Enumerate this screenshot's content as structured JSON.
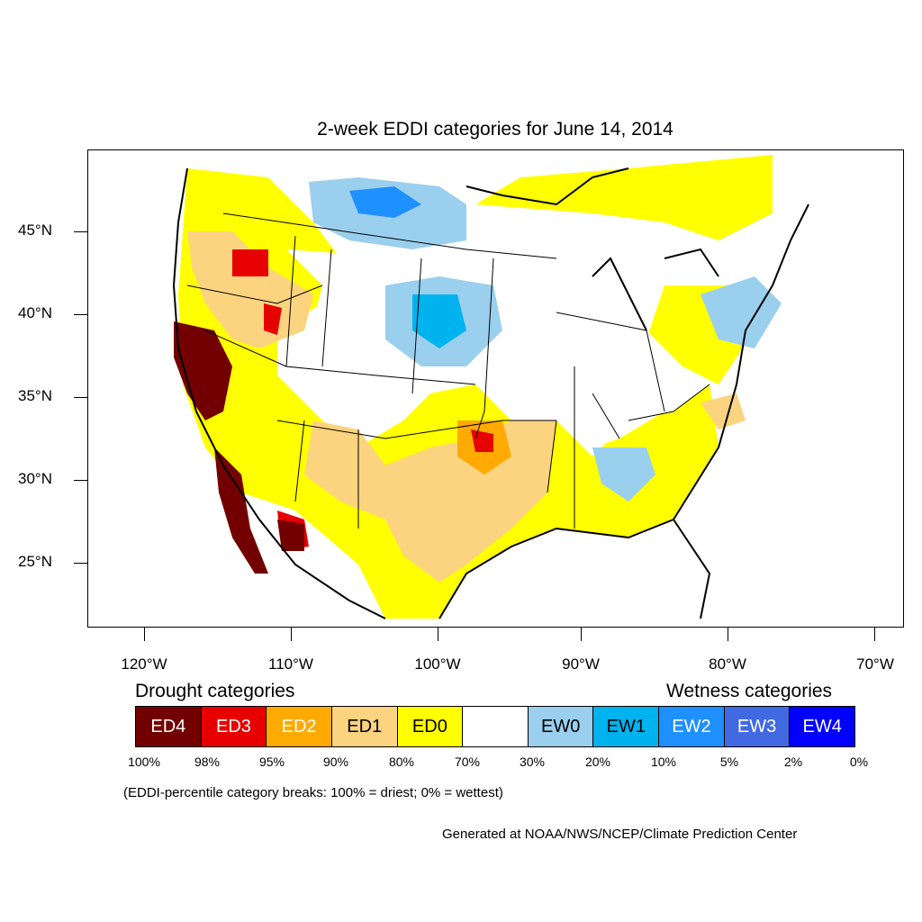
{
  "title": "2-week EDDI categories for June 14, 2014",
  "lat_labels": [
    "45°N",
    "40°N",
    "35°N",
    "30°N",
    "25°N"
  ],
  "lon_labels": [
    "120°W",
    "110°W",
    "100°W",
    "90°W",
    "80°W",
    "70°W"
  ],
  "legend": {
    "drought_heading": "Drought categories",
    "wetness_heading": "Wetness categories",
    "categories": [
      {
        "label": "ED4",
        "color": "#730000",
        "text_color": "#ffffff"
      },
      {
        "label": "ED3",
        "color": "#e60000",
        "text_color": "#ffffff"
      },
      {
        "label": "ED2",
        "color": "#ffaa00",
        "text_color": "#ffffff"
      },
      {
        "label": "ED1",
        "color": "#fcd37f",
        "text_color": "#000000"
      },
      {
        "label": "ED0",
        "color": "#ffff00",
        "text_color": "#000000"
      },
      {
        "label": "",
        "color": "#ffffff",
        "text_color": "#000000"
      },
      {
        "label": "EW0",
        "color": "#9bcfee",
        "text_color": "#000000"
      },
      {
        "label": "EW1",
        "color": "#00b3ee",
        "text_color": "#000000"
      },
      {
        "label": "EW2",
        "color": "#1e90ff",
        "text_color": "#ffffff"
      },
      {
        "label": "EW3",
        "color": "#4169e1",
        "text_color": "#ffffff"
      },
      {
        "label": "EW4",
        "color": "#0000ff",
        "text_color": "#ffffff"
      }
    ],
    "percentiles": [
      "100%",
      "98%",
      "95%",
      "90%",
      "80%",
      "70%",
      "30%",
      "20%",
      "10%",
      "5%",
      "2%",
      "0%"
    ]
  },
  "note": "(EDDI-percentile category breaks: 100% = driest; 0% = wettest)",
  "credit": "Generated at NOAA/NWS/NCEP/Climate Prediction Center"
}
